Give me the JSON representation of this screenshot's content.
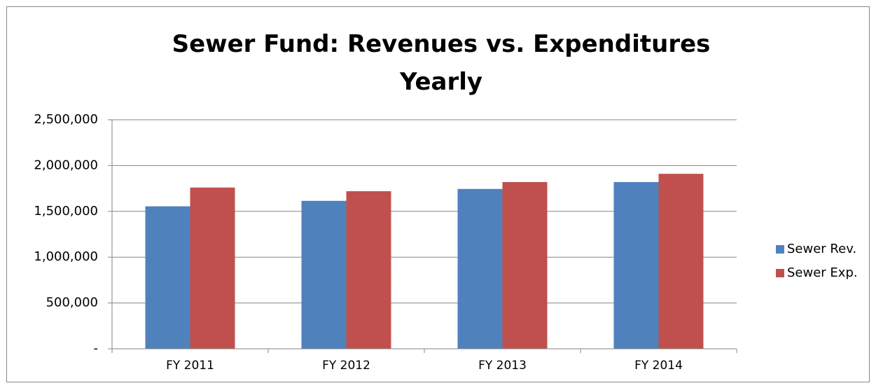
{
  "chart_data": {
    "type": "bar",
    "title": "Sewer Fund: Revenues vs. Expenditures Yearly",
    "categories": [
      "FY 2011",
      "FY 2012",
      "FY 2013",
      "FY 2014"
    ],
    "series": [
      {
        "name": "Sewer Rev.",
        "color": "#4f81bd",
        "values": [
          1555000,
          1615000,
          1745000,
          1820000
        ]
      },
      {
        "name": "Sewer Exp.",
        "color": "#c0504d",
        "values": [
          1760000,
          1720000,
          1820000,
          1910000
        ]
      }
    ],
    "ylim": [
      0,
      2500000
    ],
    "yticks": [
      {
        "value": 0,
        "label": "-"
      },
      {
        "value": 500000,
        "label": "500,000"
      },
      {
        "value": 1000000,
        "label": "1,000,000"
      },
      {
        "value": 1500000,
        "label": "1,500,000"
      },
      {
        "value": 2000000,
        "label": "2,000,000"
      },
      {
        "value": 2500000,
        "label": "2,500,000"
      }
    ],
    "grid": true,
    "legend": "right"
  }
}
